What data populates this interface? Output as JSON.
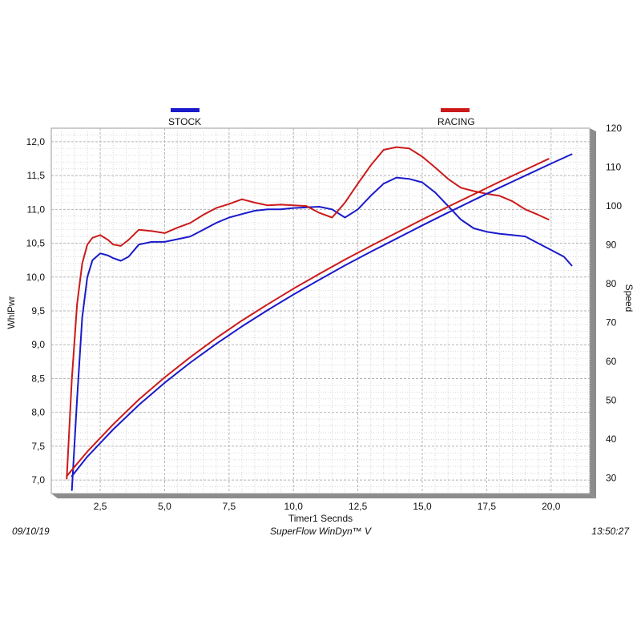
{
  "footer": {
    "date": "09/10/19",
    "software": "SuperFlow WinDyn™ V",
    "time": "13:50:27"
  },
  "chart_data": {
    "type": "line",
    "xlabel": "Timer1 Secnds",
    "ylabel": "WhlPwr",
    "y2label": "Speed",
    "xlim": [
      0.6,
      21.5
    ],
    "ylim": [
      6.8,
      12.2
    ],
    "y2lim": [
      26,
      120
    ],
    "x_ticks": [
      "2,5",
      "5,0",
      "7,5",
      "10,0",
      "12,5",
      "15,0",
      "17,5",
      "20,0"
    ],
    "x_tick_values": [
      2.5,
      5.0,
      7.5,
      10.0,
      12.5,
      15.0,
      17.5,
      20.0
    ],
    "y_ticks": [
      "7,0",
      "7,5",
      "8,0",
      "8,5",
      "9,0",
      "9,5",
      "10,0",
      "10,5",
      "11,0",
      "11,5",
      "12,0"
    ],
    "y_tick_values": [
      7.0,
      7.5,
      8.0,
      8.5,
      9.0,
      9.5,
      10.0,
      10.5,
      11.0,
      11.5,
      12.0
    ],
    "y2_ticks": [
      "30",
      "40",
      "50",
      "60",
      "70",
      "80",
      "90",
      "100",
      "110",
      "120"
    ],
    "y2_tick_values": [
      30,
      40,
      50,
      60,
      70,
      80,
      90,
      100,
      110,
      120
    ],
    "grid": true,
    "legend_position": "top",
    "series": [
      {
        "name": "STOCK",
        "color": "#1a1acc",
        "axis": "left",
        "points": [
          [
            1.4,
            6.85
          ],
          [
            1.6,
            8.2
          ],
          [
            1.8,
            9.4
          ],
          [
            2.0,
            10.0
          ],
          [
            2.2,
            10.25
          ],
          [
            2.5,
            10.35
          ],
          [
            2.8,
            10.32
          ],
          [
            3.0,
            10.28
          ],
          [
            3.3,
            10.24
          ],
          [
            3.6,
            10.3
          ],
          [
            4.0,
            10.48
          ],
          [
            4.5,
            10.52
          ],
          [
            5.0,
            10.52
          ],
          [
            5.5,
            10.56
          ],
          [
            6.0,
            10.6
          ],
          [
            6.5,
            10.7
          ],
          [
            7.0,
            10.8
          ],
          [
            7.5,
            10.88
          ],
          [
            8.0,
            10.93
          ],
          [
            8.5,
            10.98
          ],
          [
            9.0,
            11.0
          ],
          [
            9.5,
            11.0
          ],
          [
            10.0,
            11.02
          ],
          [
            10.5,
            11.03
          ],
          [
            11.0,
            11.04
          ],
          [
            11.5,
            11.0
          ],
          [
            12.0,
            10.88
          ],
          [
            12.5,
            11.0
          ],
          [
            13.0,
            11.2
          ],
          [
            13.5,
            11.38
          ],
          [
            14.0,
            11.47
          ],
          [
            14.5,
            11.45
          ],
          [
            15.0,
            11.4
          ],
          [
            15.5,
            11.25
          ],
          [
            16.0,
            11.05
          ],
          [
            16.5,
            10.85
          ],
          [
            17.0,
            10.72
          ],
          [
            17.5,
            10.67
          ],
          [
            18.0,
            10.64
          ],
          [
            18.5,
            10.62
          ],
          [
            19.0,
            10.6
          ],
          [
            19.5,
            10.5
          ],
          [
            20.0,
            10.4
          ],
          [
            20.5,
            10.3
          ],
          [
            20.8,
            10.17
          ]
        ]
      },
      {
        "name": "RACING",
        "color": "#cc1a1a",
        "axis": "left",
        "points": [
          [
            1.2,
            7.02
          ],
          [
            1.4,
            8.5
          ],
          [
            1.6,
            9.6
          ],
          [
            1.8,
            10.2
          ],
          [
            2.0,
            10.48
          ],
          [
            2.2,
            10.58
          ],
          [
            2.5,
            10.62
          ],
          [
            2.8,
            10.55
          ],
          [
            3.0,
            10.48
          ],
          [
            3.3,
            10.46
          ],
          [
            3.6,
            10.55
          ],
          [
            4.0,
            10.7
          ],
          [
            4.5,
            10.68
          ],
          [
            5.0,
            10.65
          ],
          [
            5.5,
            10.73
          ],
          [
            6.0,
            10.8
          ],
          [
            6.5,
            10.92
          ],
          [
            7.0,
            11.02
          ],
          [
            7.5,
            11.08
          ],
          [
            8.0,
            11.15
          ],
          [
            8.5,
            11.1
          ],
          [
            9.0,
            11.06
          ],
          [
            9.5,
            11.07
          ],
          [
            10.0,
            11.06
          ],
          [
            10.5,
            11.05
          ],
          [
            11.0,
            10.95
          ],
          [
            11.5,
            10.88
          ],
          [
            12.0,
            11.1
          ],
          [
            12.5,
            11.38
          ],
          [
            13.0,
            11.65
          ],
          [
            13.5,
            11.88
          ],
          [
            14.0,
            11.92
          ],
          [
            14.5,
            11.9
          ],
          [
            15.0,
            11.78
          ],
          [
            15.5,
            11.62
          ],
          [
            16.0,
            11.45
          ],
          [
            16.5,
            11.32
          ],
          [
            17.0,
            11.27
          ],
          [
            17.5,
            11.23
          ],
          [
            18.0,
            11.2
          ],
          [
            18.5,
            11.12
          ],
          [
            19.0,
            11.0
          ],
          [
            19.5,
            10.92
          ],
          [
            19.9,
            10.85
          ]
        ]
      },
      {
        "name": "STOCK Speed",
        "color": "#1a1acc",
        "axis": "right",
        "points": [
          [
            1.4,
            30.5
          ],
          [
            2.0,
            35.5
          ],
          [
            3.0,
            42.5
          ],
          [
            4.0,
            48.8
          ],
          [
            5.0,
            54.5
          ],
          [
            6.0,
            59.7
          ],
          [
            7.0,
            64.5
          ],
          [
            8.0,
            69.0
          ],
          [
            9.0,
            73.2
          ],
          [
            10.0,
            77.2
          ],
          [
            11.0,
            81.0
          ],
          [
            12.0,
            84.7
          ],
          [
            13.0,
            88.2
          ],
          [
            14.0,
            91.6
          ],
          [
            15.0,
            95.0
          ],
          [
            16.0,
            98.3
          ],
          [
            17.0,
            101.5
          ],
          [
            18.0,
            104.7
          ],
          [
            19.0,
            107.8
          ],
          [
            20.0,
            110.9
          ],
          [
            20.8,
            113.3
          ]
        ]
      },
      {
        "name": "RACING Speed",
        "color": "#cc1a1a",
        "axis": "right",
        "points": [
          [
            1.2,
            30.5
          ],
          [
            2.0,
            36.8
          ],
          [
            3.0,
            43.8
          ],
          [
            4.0,
            50.2
          ],
          [
            5.0,
            55.9
          ],
          [
            6.0,
            61.1
          ],
          [
            7.0,
            66.0
          ],
          [
            8.0,
            70.5
          ],
          [
            9.0,
            74.7
          ],
          [
            10.0,
            78.7
          ],
          [
            11.0,
            82.5
          ],
          [
            12.0,
            86.2
          ],
          [
            13.0,
            89.7
          ],
          [
            14.0,
            93.1
          ],
          [
            15.0,
            96.5
          ],
          [
            16.0,
            99.8
          ],
          [
            17.0,
            103.0
          ],
          [
            18.0,
            106.2
          ],
          [
            19.0,
            109.3
          ],
          [
            19.9,
            112.1
          ]
        ]
      }
    ]
  }
}
